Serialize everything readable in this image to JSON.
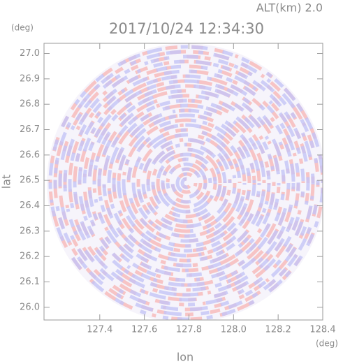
{
  "chart_data": {
    "type": "radar-ppi",
    "title": "2017/10/24 12:34:30",
    "subtitle": "ALT(km) 2.0",
    "x_label": "lon",
    "y_label": "lat",
    "x_unit": "(deg)",
    "y_unit": "(deg)",
    "xlim": [
      127.15,
      128.4
    ],
    "ylim": [
      25.95,
      27.04
    ],
    "xticks": [
      127.4,
      127.6,
      127.8,
      {
        "value": 128.0,
        "label": "128.0"
      },
      128.2,
      128.4
    ],
    "yticks": [
      {
        "value": 26.0,
        "label": "26.0"
      },
      26.1,
      26.2,
      26.3,
      26.4,
      26.5,
      26.6,
      26.7,
      26.8,
      26.9,
      {
        "value": 27.0,
        "label": "27.0"
      }
    ]
  }
}
